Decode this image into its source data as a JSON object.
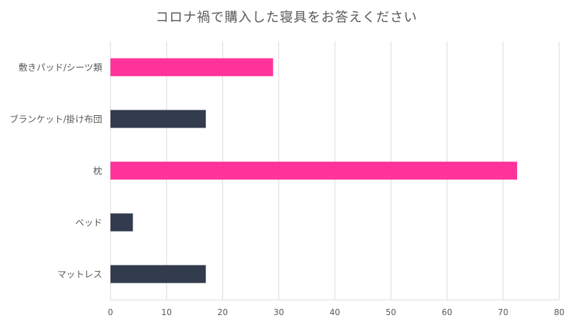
{
  "chart_data": {
    "type": "bar",
    "orientation": "horizontal",
    "title": "コロナ禍で購入した寝具をお答えください",
    "categories": [
      "敷きパッド/シーツ類",
      "ブランケット/掛け布団",
      "枕",
      "ベッド",
      "マットレス"
    ],
    "values": [
      29,
      17,
      72.5,
      4,
      17
    ],
    "bar_colors": [
      "#ff3399",
      "#333c4e",
      "#ff3399",
      "#333c4e",
      "#333c4e"
    ],
    "xlim": [
      0,
      80
    ],
    "xticks": [
      0,
      10,
      20,
      30,
      40,
      50,
      60,
      70,
      80
    ],
    "grid": "vertical",
    "legend": "none",
    "xlabel": "",
    "ylabel": ""
  },
  "colors": {
    "grid": "#d9d9d9",
    "axis_text": "#595959",
    "title": "#595959"
  }
}
